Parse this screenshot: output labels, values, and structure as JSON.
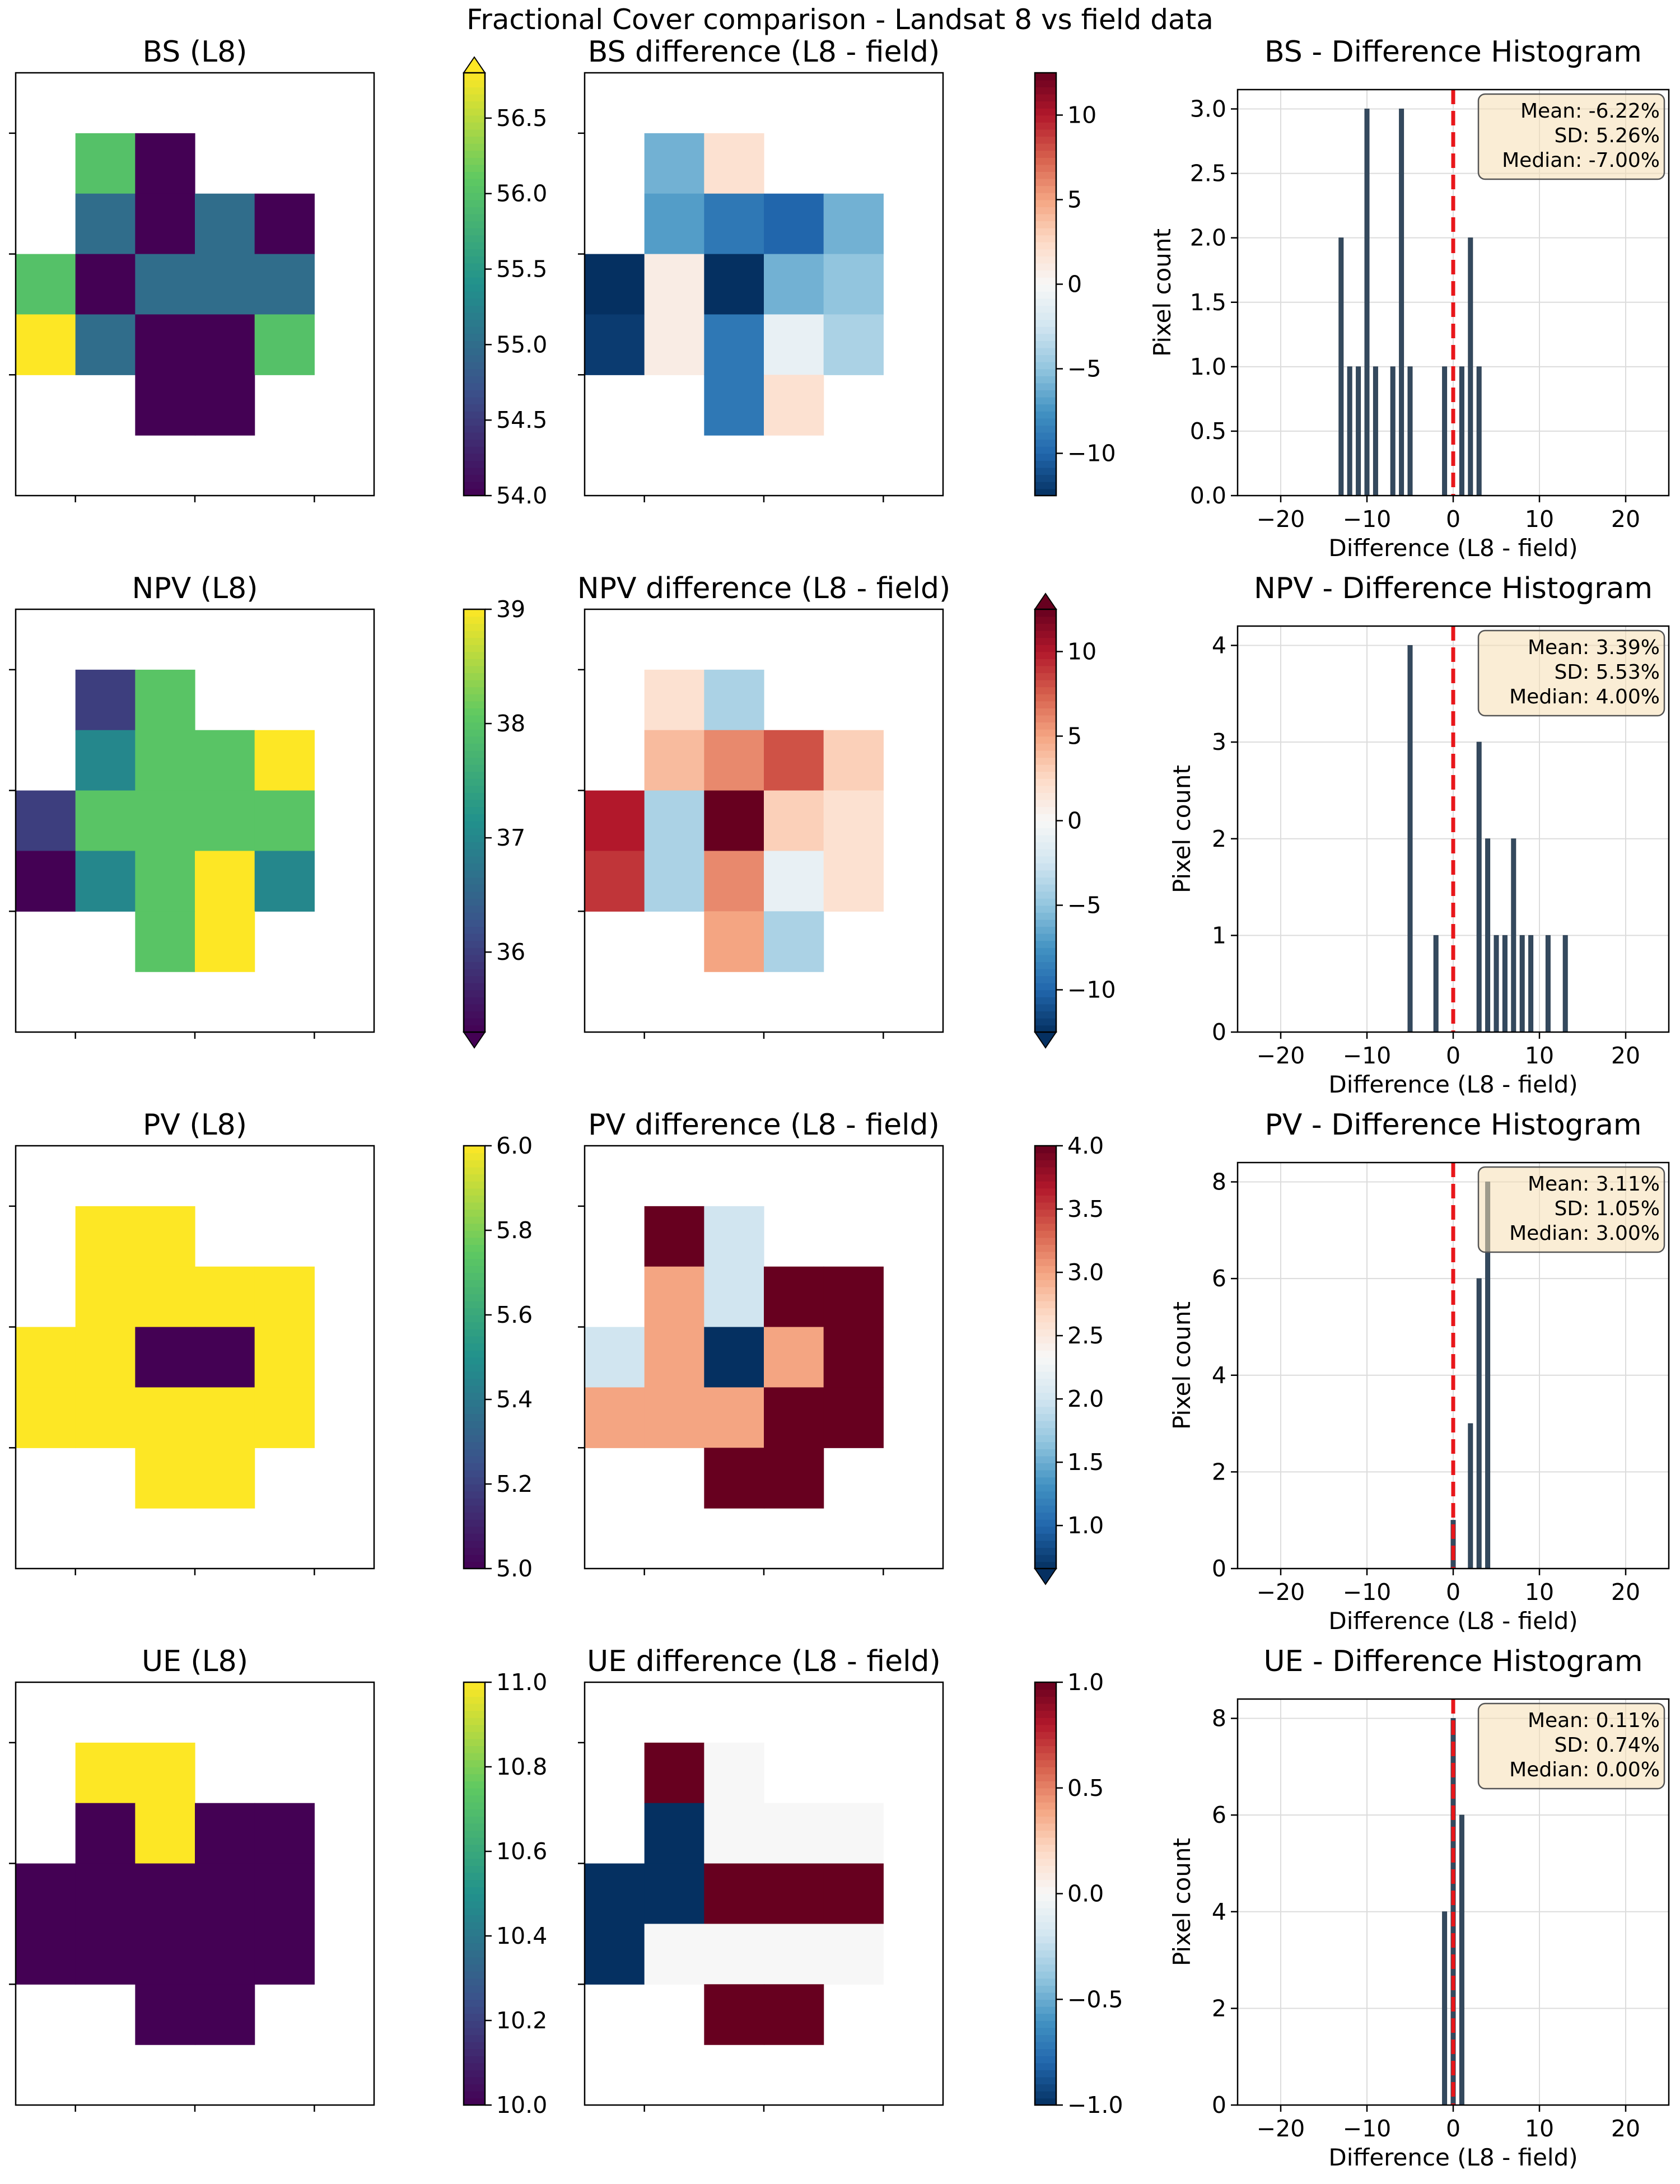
{
  "figure_title": "Fractional Cover comparison - Landsat 8 vs field data",
  "chart_data": [
    {
      "type": "heatmap",
      "panel": "bs-map",
      "title": "BS (L8)",
      "colormap": "viridis",
      "colorbar": {
        "min": 54.0,
        "max": 56.8,
        "ticks": [
          "54.0",
          "54.5",
          "55.0",
          "55.5",
          "56.0",
          "56.5"
        ],
        "tick_values": [
          54.0,
          54.5,
          55.0,
          55.5,
          56.0,
          56.5
        ],
        "extend": "max"
      },
      "grid": [
        [
          null,
          null,
          null,
          null,
          null,
          null
        ],
        [
          null,
          56,
          54,
          null,
          null,
          null
        ],
        [
          null,
          55,
          54,
          55,
          54,
          null
        ],
        [
          56,
          54,
          55,
          55,
          55,
          null
        ],
        [
          57,
          55,
          54,
          54,
          56,
          null
        ],
        [
          null,
          null,
          54,
          54,
          null,
          null
        ],
        [
          null,
          null,
          null,
          null,
          null,
          null
        ]
      ]
    },
    {
      "type": "heatmap",
      "panel": "bs-diff",
      "title": "BS difference (L8 - field)",
      "colormap": "RdBu_r",
      "colorbar": {
        "min": -12.5,
        "max": 12.5,
        "ticks": [
          "10",
          "5",
          "0",
          "−5",
          "−10"
        ],
        "tick_values": [
          10,
          5,
          0,
          -5,
          -10
        ],
        "extend": "none"
      },
      "grid": [
        [
          null,
          null,
          null,
          null,
          null,
          null
        ],
        [
          null,
          -6,
          2,
          null,
          null,
          null
        ],
        [
          null,
          -7,
          -9,
          -10,
          -6,
          null
        ],
        [
          -13,
          1,
          -13,
          -6,
          -5,
          null
        ],
        [
          -12,
          1,
          -9,
          -1,
          -4,
          null
        ],
        [
          null,
          null,
          -9,
          2,
          null,
          null
        ],
        [
          null,
          null,
          null,
          null,
          null,
          null
        ]
      ]
    },
    {
      "type": "bar",
      "panel": "bs-hist",
      "title": "BS - Difference Histogram",
      "xlabel": "Difference (L8 - field)",
      "ylabel": "Pixel count",
      "xlim": [
        -25,
        25
      ],
      "ylim": [
        0,
        3.15
      ],
      "xticks": [
        -20,
        -10,
        0,
        10,
        20
      ],
      "xtick_labels": [
        "−20",
        "−10",
        "0",
        "10",
        "20"
      ],
      "yticks": [
        0,
        0.5,
        1,
        1.5,
        2,
        2.5,
        3
      ],
      "ytick_labels": [
        "0.0",
        "0.5",
        "1.0",
        "1.5",
        "2.0",
        "2.5",
        "3.0"
      ],
      "bins": [
        -13,
        -12,
        -11,
        -10,
        -9,
        -7,
        -6,
        -5,
        -1,
        1,
        2,
        3
      ],
      "counts": [
        2,
        1,
        1,
        3,
        1,
        1,
        3,
        1,
        1,
        1,
        2,
        1
      ],
      "mean_line": 0,
      "stats": [
        "Mean: -6.22%",
        "SD: 5.26%",
        "Median: -7.00%"
      ]
    },
    {
      "type": "heatmap",
      "panel": "npv-map",
      "title": "NPV (L8)",
      "colormap": "viridis",
      "colorbar": {
        "min": 35.3,
        "max": 39.0,
        "ticks": [
          "39",
          "38",
          "37",
          "36"
        ],
        "tick_values": [
          39,
          38,
          37,
          36
        ],
        "extend": "min"
      },
      "grid": [
        [
          null,
          null,
          null,
          null,
          null,
          null
        ],
        [
          null,
          36,
          38,
          null,
          null,
          null
        ],
        [
          null,
          37,
          38,
          38,
          39,
          null
        ],
        [
          36,
          38,
          38,
          38,
          38,
          null
        ],
        [
          35,
          37,
          38,
          39,
          37,
          null
        ],
        [
          null,
          null,
          38,
          39,
          null,
          null
        ],
        [
          null,
          null,
          null,
          null,
          null,
          null
        ]
      ]
    },
    {
      "type": "heatmap",
      "panel": "npv-diff",
      "title": "NPV difference (L8 - field)",
      "colormap": "RdBu_r",
      "colorbar": {
        "min": -12.5,
        "max": 12.5,
        "ticks": [
          "10",
          "5",
          "0",
          "−5",
          "−10"
        ],
        "tick_values": [
          10,
          5,
          0,
          -5,
          -10
        ],
        "extend": "both"
      },
      "grid": [
        [
          null,
          null,
          null,
          null,
          null,
          null
        ],
        [
          null,
          2,
          -4,
          null,
          null,
          null
        ],
        [
          null,
          4,
          6,
          8,
          3,
          null
        ],
        [
          10,
          -4,
          13,
          3,
          2,
          null
        ],
        [
          9,
          -4,
          6,
          -1,
          2,
          null
        ],
        [
          null,
          null,
          5,
          -4,
          null,
          null
        ],
        [
          null,
          null,
          null,
          null,
          null,
          null
        ]
      ]
    },
    {
      "type": "bar",
      "panel": "npv-hist",
      "title": "NPV - Difference Histogram",
      "xlabel": "Difference (L8 - field)",
      "ylabel": "Pixel count",
      "xlim": [
        -25,
        25
      ],
      "ylim": [
        0,
        4.2
      ],
      "xticks": [
        -20,
        -10,
        0,
        10,
        20
      ],
      "xtick_labels": [
        "−20",
        "−10",
        "0",
        "10",
        "20"
      ],
      "yticks": [
        0,
        1,
        2,
        3,
        4
      ],
      "ytick_labels": [
        "0",
        "1",
        "2",
        "3",
        "4"
      ],
      "bins": [
        -5,
        -2,
        3,
        4,
        5,
        6,
        7,
        8,
        9,
        11,
        13
      ],
      "counts": [
        4,
        1,
        3,
        2,
        1,
        1,
        2,
        1,
        1,
        1,
        1
      ],
      "mean_line": 0,
      "stats": [
        "Mean: 3.39%",
        "SD: 5.53%",
        "Median: 4.00%"
      ]
    },
    {
      "type": "heatmap",
      "panel": "pv-map",
      "title": "PV (L8)",
      "colormap": "viridis",
      "colorbar": {
        "min": 5.0,
        "max": 6.0,
        "ticks": [
          "6.0",
          "5.8",
          "5.6",
          "5.4",
          "5.2",
          "5.0"
        ],
        "tick_values": [
          6.0,
          5.8,
          5.6,
          5.4,
          5.2,
          5.0
        ],
        "extend": "none"
      },
      "grid": [
        [
          null,
          null,
          null,
          null,
          null,
          null
        ],
        [
          null,
          6,
          6,
          null,
          null,
          null
        ],
        [
          null,
          6,
          6,
          6,
          6,
          null
        ],
        [
          6,
          6,
          5,
          5,
          6,
          null
        ],
        [
          6,
          6,
          6,
          6,
          6,
          null
        ],
        [
          null,
          null,
          6,
          6,
          null,
          null
        ],
        [
          null,
          null,
          null,
          null,
          null,
          null
        ]
      ]
    },
    {
      "type": "heatmap",
      "panel": "pv-diff",
      "title": "PV difference (L8 - field)",
      "colormap": "RdBu_r",
      "colorbar": {
        "min": 0.66,
        "max": 4.0,
        "ticks": [
          "4.0",
          "3.5",
          "3.0",
          "2.5",
          "2.0",
          "1.5",
          "1.0"
        ],
        "tick_values": [
          4.0,
          3.5,
          3.0,
          2.5,
          2.0,
          1.5,
          1.0
        ],
        "extend": "min"
      },
      "grid": [
        [
          null,
          null,
          null,
          null,
          null,
          null
        ],
        [
          null,
          4,
          2,
          null,
          null,
          null
        ],
        [
          null,
          3,
          2,
          4,
          4,
          null
        ],
        [
          2,
          3,
          0,
          3,
          4,
          null
        ],
        [
          3,
          3,
          3,
          4,
          4,
          null
        ],
        [
          null,
          null,
          4,
          4,
          null,
          null
        ],
        [
          null,
          null,
          null,
          null,
          null,
          null
        ]
      ]
    },
    {
      "type": "bar",
      "panel": "pv-hist",
      "title": "PV - Difference Histogram",
      "xlabel": "Difference (L8 - field)",
      "ylabel": "Pixel count",
      "xlim": [
        -25,
        25
      ],
      "ylim": [
        0,
        8.4
      ],
      "xticks": [
        -20,
        -10,
        0,
        10,
        20
      ],
      "xtick_labels": [
        "−20",
        "−10",
        "0",
        "10",
        "20"
      ],
      "yticks": [
        0,
        2,
        4,
        6,
        8
      ],
      "ytick_labels": [
        "0",
        "2",
        "4",
        "6",
        "8"
      ],
      "bins": [
        0,
        2,
        3,
        4
      ],
      "counts": [
        1,
        3,
        6,
        8
      ],
      "mean_line": 0,
      "stats": [
        "Mean: 3.11%",
        "SD: 1.05%",
        "Median: 3.00%"
      ]
    },
    {
      "type": "heatmap",
      "panel": "ue-map",
      "title": "UE (L8)",
      "colormap": "viridis",
      "colorbar": {
        "min": 10.0,
        "max": 11.0,
        "ticks": [
          "11.0",
          "10.8",
          "10.6",
          "10.4",
          "10.2",
          "10.0"
        ],
        "tick_values": [
          11.0,
          10.8,
          10.6,
          10.4,
          10.2,
          10.0
        ],
        "extend": "none"
      },
      "grid": [
        [
          null,
          null,
          null,
          null,
          null,
          null
        ],
        [
          null,
          11,
          11,
          null,
          null,
          null
        ],
        [
          null,
          10,
          11,
          10,
          10,
          null
        ],
        [
          10,
          10,
          10,
          10,
          10,
          null
        ],
        [
          10,
          10,
          10,
          10,
          10,
          null
        ],
        [
          null,
          null,
          10,
          10,
          null,
          null
        ],
        [
          null,
          null,
          null,
          null,
          null,
          null
        ]
      ]
    },
    {
      "type": "heatmap",
      "panel": "ue-diff",
      "title": "UE difference (L8 - field)",
      "colormap": "RdBu_r",
      "colorbar": {
        "min": -1.0,
        "max": 1.0,
        "ticks": [
          "1.0",
          "0.5",
          "0.0",
          "−0.5",
          "−1.0"
        ],
        "tick_values": [
          1.0,
          0.5,
          0.0,
          -0.5,
          -1.0
        ],
        "extend": "none"
      },
      "grid": [
        [
          null,
          null,
          null,
          null,
          null,
          null
        ],
        [
          null,
          1,
          0,
          null,
          null,
          null
        ],
        [
          null,
          -1,
          0,
          0,
          0,
          null
        ],
        [
          -1,
          -1,
          1,
          1,
          1,
          null
        ],
        [
          -1,
          0,
          0,
          0,
          0,
          null
        ],
        [
          null,
          null,
          1,
          1,
          null,
          null
        ],
        [
          null,
          null,
          null,
          null,
          null,
          null
        ]
      ]
    },
    {
      "type": "bar",
      "panel": "ue-hist",
      "title": "UE - Difference Histogram",
      "xlabel": "Difference (L8 - field)",
      "ylabel": "Pixel count",
      "xlim": [
        -25,
        25
      ],
      "ylim": [
        0,
        8.4
      ],
      "xticks": [
        -20,
        -10,
        0,
        10,
        20
      ],
      "xtick_labels": [
        "−20",
        "−10",
        "0",
        "10",
        "20"
      ],
      "yticks": [
        0,
        2,
        4,
        6,
        8
      ],
      "ytick_labels": [
        "0",
        "2",
        "4",
        "6",
        "8"
      ],
      "bins": [
        -1,
        0,
        1
      ],
      "counts": [
        4,
        8,
        6
      ],
      "mean_line": 0,
      "stats": [
        "Mean: 0.11%",
        "SD: 0.74%",
        "Median: 0.00%"
      ]
    }
  ]
}
